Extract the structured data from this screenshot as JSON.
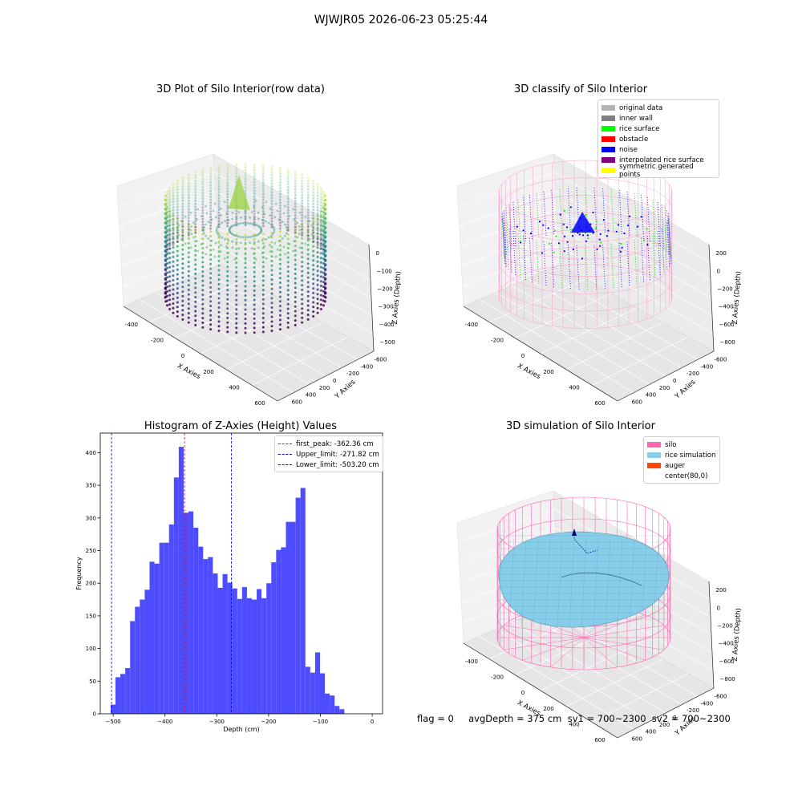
{
  "suptitle": "WJWJR05 2026-06-23 05:25:44",
  "info_line": "flag = 0     avgDepth = 375 cm  sv1 = 700~2300  sv2 = 700~2300",
  "chart_data": [
    {
      "type": "scatter3d",
      "title": "3D Plot of Silo Interior(row data)",
      "xlabel": "X Axies",
      "ylabel": "Y Axies",
      "zlabel": "Z Axies (Depth)",
      "x_ticks": [
        "-400",
        "-200",
        "0",
        "200",
        "400",
        "600"
      ],
      "y_ticks": [
        "-600",
        "-400",
        "-200",
        "0",
        "200",
        "400",
        "600"
      ],
      "z_ticks": [
        "0",
        "−100",
        "−200",
        "−300",
        "−400",
        "−500"
      ],
      "colormap": "viridis"
    },
    {
      "type": "scatter3d",
      "title": "3D classify of Silo Interior",
      "xlabel": "X Axies",
      "ylabel": "Y Axies",
      "zlabel": "Z Axies (Depth)",
      "x_ticks": [
        "-400",
        "-200",
        "0",
        "200",
        "400",
        "600"
      ],
      "y_ticks": [
        "-600",
        "-400",
        "-200",
        "0",
        "200",
        "400",
        "600"
      ],
      "z_ticks": [
        "200",
        "0",
        "−200",
        "−400",
        "−600",
        "−800"
      ],
      "legend_position": "top-right",
      "legend": [
        {
          "label": "original data",
          "color": "#b3b3b3"
        },
        {
          "label": "inner wall",
          "color": "#808080"
        },
        {
          "label": "rice surface",
          "color": "#00ff00"
        },
        {
          "label": "obstacle",
          "color": "#ff0000"
        },
        {
          "label": "noise",
          "color": "#0000ff"
        },
        {
          "label": "interpolated rice surface",
          "color": "#800080"
        },
        {
          "label": "symmetric generated points",
          "color": "#ffff00"
        }
      ]
    },
    {
      "type": "bar",
      "title": "Histogram of Z-Axies (Height) Values",
      "xlabel": "Depth (cm)",
      "ylabel": "Frequency",
      "xlim": [
        -525,
        20
      ],
      "ylim": [
        0,
        430
      ],
      "x_ticks": [
        -500,
        -400,
        -300,
        -200,
        -100,
        0
      ],
      "y_ticks": [
        0,
        50,
        100,
        150,
        200,
        250,
        300,
        350,
        400
      ],
      "bar_color": "#4d4dff",
      "bin_start": -505,
      "bin_width": 9.4,
      "values": [
        14,
        56,
        61,
        70,
        142,
        164,
        175,
        190,
        233,
        230,
        262,
        262,
        290,
        362,
        409,
        308,
        310,
        285,
        256,
        237,
        240,
        215,
        193,
        214,
        201,
        192,
        176,
        194,
        177,
        175,
        191,
        177,
        200,
        232,
        251,
        255,
        294,
        294,
        331,
        346,
        72,
        63,
        94,
        62,
        31,
        28,
        12,
        7
      ],
      "vlines": [
        {
          "label": "first_peak: -362.36 cm",
          "x": -362.36,
          "color": "#ff0000"
        },
        {
          "label": "Upper_limit: -271.82 cm",
          "x": -271.82,
          "color": "#0000ff"
        },
        {
          "label": "Lower_limit: -503.20 cm",
          "x": -503.2,
          "color": "#0000ff"
        }
      ],
      "legend_position": "top-right"
    },
    {
      "type": "surface3d",
      "title": "3D simulation of Silo Interior",
      "xlabel": "X Axies",
      "ylabel": "Y Axies",
      "zlabel": "Z Axies (Depth)",
      "x_ticks": [
        "-400",
        "-200",
        "0",
        "200",
        "400",
        "600"
      ],
      "y_ticks": [
        "-600",
        "-400",
        "-200",
        "0",
        "200",
        "400",
        "600"
      ],
      "z_ticks": [
        "200",
        "0",
        "−200",
        "−400",
        "−600",
        "−800"
      ],
      "legend_position": "top-right",
      "legend": [
        {
          "label": "silo",
          "color": "#ff69b4"
        },
        {
          "label": "rice simulation",
          "color": "#87ceeb"
        },
        {
          "label": "auger",
          "color": "#ff4500"
        },
        {
          "label": "center(80,0)",
          "color": ""
        }
      ]
    }
  ]
}
